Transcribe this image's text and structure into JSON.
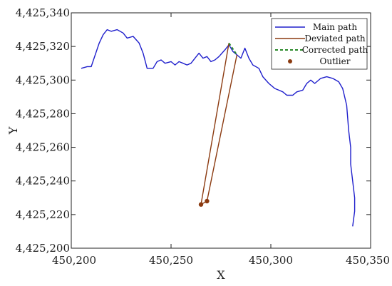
{
  "chart_data": {
    "type": "line",
    "xlabel": "X",
    "ylabel": "Y",
    "xlim": [
      450200,
      450350
    ],
    "ylim": [
      4425200,
      4425340
    ],
    "x_ticks": [
      450200,
      450250,
      450300,
      450350
    ],
    "y_ticks": [
      4425200,
      4425220,
      4425240,
      4425260,
      4425280,
      4425300,
      4425320,
      4425340
    ],
    "x_tick_labels": [
      "450,200",
      "450,250",
      "450,300",
      "450,350"
    ],
    "y_tick_labels": [
      "4,425,200",
      "4,425,220",
      "4,425,240",
      "4,425,260",
      "4,425,280",
      "4,425,300",
      "4,425,320",
      "4,425,340"
    ],
    "legend_position": "top-right",
    "grid": false,
    "series": [
      {
        "name": "Main path",
        "color": "#1f1fcc",
        "style": "solid",
        "points": [
          [
            450205,
            4425307
          ],
          [
            450208,
            4425308
          ],
          [
            450210,
            4425308
          ],
          [
            450212,
            4425315
          ],
          [
            450214,
            4425322
          ],
          [
            450216,
            4425327
          ],
          [
            450218,
            4425330
          ],
          [
            450220,
            4425329
          ],
          [
            450223,
            4425330
          ],
          [
            450226,
            4425328
          ],
          [
            450228,
            4425325
          ],
          [
            450231,
            4425326
          ],
          [
            450234,
            4425322
          ],
          [
            450236,
            4425316
          ],
          [
            450238,
            4425307
          ],
          [
            450241,
            4425307
          ],
          [
            450243,
            4425311
          ],
          [
            450245,
            4425312
          ],
          [
            450247,
            4425310
          ],
          [
            450250,
            4425311
          ],
          [
            450252,
            4425309
          ],
          [
            450254,
            4425311
          ],
          [
            450256,
            4425310
          ],
          [
            450258,
            4425309
          ],
          [
            450260,
            4425310
          ],
          [
            450262,
            4425313
          ],
          [
            450264,
            4425316
          ],
          [
            450266,
            4425313
          ],
          [
            450268,
            4425314
          ],
          [
            450270,
            4425311
          ],
          [
            450272,
            4425312
          ],
          [
            450274,
            4425314
          ],
          [
            450277,
            4425318
          ],
          [
            450279,
            4425321
          ],
          [
            450281,
            4425317
          ],
          [
            450283,
            4425315
          ],
          [
            450285,
            4425313
          ],
          [
            450287,
            4425319
          ],
          [
            450289,
            4425313
          ],
          [
            450291,
            4425309
          ],
          [
            450294,
            4425307
          ],
          [
            450296,
            4425302
          ],
          [
            450299,
            4425298
          ],
          [
            450302,
            4425295
          ],
          [
            450304,
            4425294
          ],
          [
            450306,
            4425293
          ],
          [
            450308,
            4425291
          ],
          [
            450311,
            4425291
          ],
          [
            450313,
            4425293
          ],
          [
            450316,
            4425294
          ],
          [
            450318,
            4425298
          ],
          [
            450320,
            4425300
          ],
          [
            450322,
            4425298
          ],
          [
            450325,
            4425301
          ],
          [
            450328,
            4425302
          ],
          [
            450331,
            4425301
          ],
          [
            450334,
            4425299
          ],
          [
            450336,
            4425295
          ],
          [
            450338,
            4425285
          ],
          [
            450339,
            4425270
          ],
          [
            450340,
            4425260
          ],
          [
            450340,
            4425250
          ],
          [
            450341,
            4425240
          ],
          [
            450342,
            4425230
          ],
          [
            450342,
            4425222
          ],
          [
            450341,
            4425213
          ]
        ]
      },
      {
        "name": "Deviated path",
        "color": "#8b3a10",
        "style": "solid",
        "points": [
          [
            450279,
            4425322
          ],
          [
            450265,
            4425226
          ],
          [
            450268,
            4425228
          ],
          [
            450283,
            4425315
          ]
        ]
      },
      {
        "name": "Corrected path",
        "color": "#2a8a2a",
        "style": "dashed",
        "points": [
          [
            450279,
            4425322
          ],
          [
            450283,
            4425315
          ]
        ]
      },
      {
        "name": "Outlier",
        "color": "#8b3a10",
        "style": "marker",
        "points": [
          [
            450265,
            4425226
          ],
          [
            450268,
            4425228
          ]
        ]
      }
    ]
  }
}
